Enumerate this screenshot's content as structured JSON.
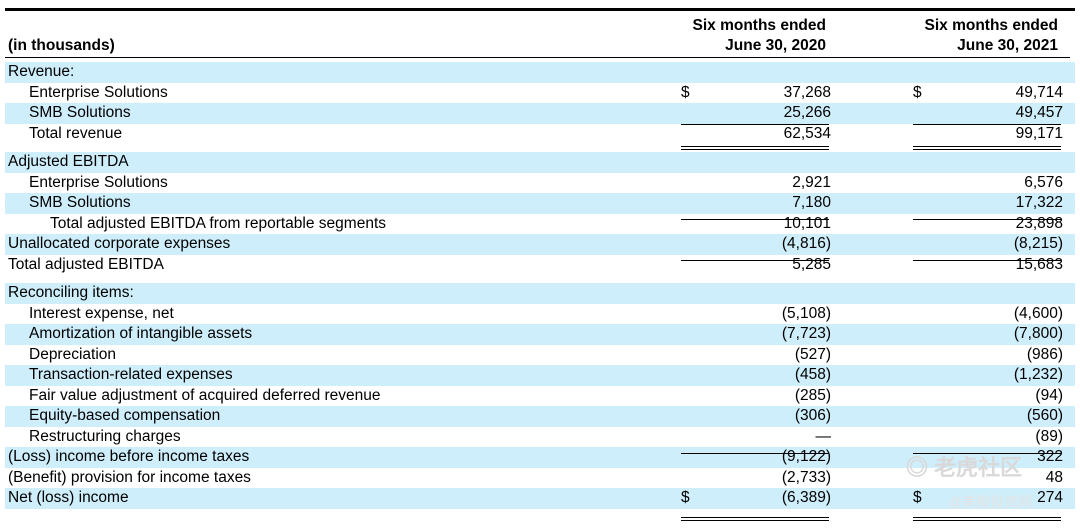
{
  "header": {
    "units": "(in thousands)",
    "col1_line1": "Six months ended",
    "col1_line2": "June 30, 2020",
    "col2_line1": "Six months ended",
    "col2_line2": "June 30, 2021"
  },
  "rows": [
    {
      "label": "Revenue:",
      "indent": 0,
      "shade": true,
      "c1": "",
      "c2": "",
      "cur1": "",
      "cur2": ""
    },
    {
      "label": "Enterprise Solutions",
      "indent": 1,
      "shade": false,
      "c1": "37,268",
      "c2": "49,714",
      "cur1": "$",
      "cur2": "$"
    },
    {
      "label": "SMB Solutions",
      "indent": 1,
      "shade": true,
      "c1": "25,266",
      "c2": "49,457",
      "cur1": "",
      "cur2": ""
    },
    {
      "label": "Total revenue",
      "indent": 1,
      "shade": false,
      "c1": "62,534",
      "c2": "99,171",
      "cur1": "",
      "cur2": ""
    },
    {
      "label": "",
      "indent": 0,
      "shade": false,
      "c1": "",
      "c2": "",
      "cur1": "",
      "cur2": ""
    },
    {
      "label": "Adjusted EBITDA",
      "indent": 0,
      "shade": true,
      "c1": "",
      "c2": "",
      "cur1": "",
      "cur2": ""
    },
    {
      "label": "Enterprise Solutions",
      "indent": 1,
      "shade": false,
      "c1": "2,921",
      "c2": "6,576",
      "cur1": "",
      "cur2": ""
    },
    {
      "label": "SMB Solutions",
      "indent": 1,
      "shade": true,
      "c1": "7,180",
      "c2": "17,322",
      "cur1": "",
      "cur2": ""
    },
    {
      "label": "Total adjusted EBITDA from reportable segments",
      "indent": 2,
      "shade": false,
      "c1": "10,101",
      "c2": "23,898",
      "cur1": "",
      "cur2": ""
    },
    {
      "label": "Unallocated corporate expenses",
      "indent": 0,
      "shade": true,
      "c1": "(4,816)",
      "c2": "(8,215)",
      "cur1": "",
      "cur2": ""
    },
    {
      "label": "Total adjusted EBITDA",
      "indent": 0,
      "shade": false,
      "c1": "5,285",
      "c2": "15,683",
      "cur1": "",
      "cur2": ""
    },
    {
      "label": "",
      "indent": 0,
      "shade": false,
      "c1": "",
      "c2": "",
      "cur1": "",
      "cur2": ""
    },
    {
      "label": "Reconciling items:",
      "indent": 0,
      "shade": true,
      "c1": "",
      "c2": "",
      "cur1": "",
      "cur2": ""
    },
    {
      "label": "Interest expense, net",
      "indent": 1,
      "shade": false,
      "c1": "(5,108)",
      "c2": "(4,600)",
      "cur1": "",
      "cur2": ""
    },
    {
      "label": "Amortization of intangible assets",
      "indent": 1,
      "shade": true,
      "c1": "(7,723)",
      "c2": "(7,800)",
      "cur1": "",
      "cur2": ""
    },
    {
      "label": "Depreciation",
      "indent": 1,
      "shade": false,
      "c1": "(527)",
      "c2": "(986)",
      "cur1": "",
      "cur2": ""
    },
    {
      "label": "Transaction-related expenses",
      "indent": 1,
      "shade": true,
      "c1": "(458)",
      "c2": "(1,232)",
      "cur1": "",
      "cur2": ""
    },
    {
      "label": "Fair value adjustment of acquired deferred revenue",
      "indent": 1,
      "shade": false,
      "c1": "(285)",
      "c2": "(94)",
      "cur1": "",
      "cur2": ""
    },
    {
      "label": "Equity-based compensation",
      "indent": 1,
      "shade": true,
      "c1": "(306)",
      "c2": "(560)",
      "cur1": "",
      "cur2": ""
    },
    {
      "label": "Restructuring charges",
      "indent": 1,
      "shade": false,
      "c1": "—",
      "c2": "(89)",
      "cur1": "",
      "cur2": ""
    },
    {
      "label": "(Loss) income before income taxes",
      "indent": 0,
      "shade": true,
      "c1": "(9,122)",
      "c2": "322",
      "cur1": "",
      "cur2": ""
    },
    {
      "label": "(Benefit) provision for income taxes",
      "indent": 0,
      "shade": false,
      "c1": "(2,733)",
      "c2": "48",
      "cur1": "",
      "cur2": ""
    },
    {
      "label": "Net (loss) income",
      "indent": 0,
      "shade": true,
      "c1": "(6,389)",
      "c2": "274",
      "cur1": "$",
      "cur2": "$"
    }
  ],
  "watermark": {
    "text1": "老虎社区",
    "text2": "@美股投资网"
  }
}
